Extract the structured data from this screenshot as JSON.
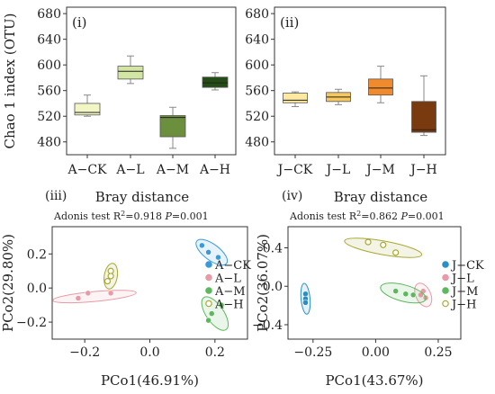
{
  "chart_data": [
    {
      "panel": "(i)",
      "type": "box",
      "ylabel": "Chao 1 index (OTU)",
      "ylim": [
        460,
        690
      ],
      "yticks": [
        480,
        520,
        560,
        600,
        640,
        680
      ],
      "grid": false,
      "categories": [
        "A−CK",
        "A−L",
        "A−M",
        "A−H"
      ],
      "boxes": [
        {
          "min": 520,
          "q1": 522,
          "median": 526,
          "q3": 540,
          "max": 553
        },
        {
          "min": 571,
          "q1": 578,
          "median": 590,
          "q3": 598,
          "max": 614
        },
        {
          "min": 470,
          "q1": 488,
          "median": 518,
          "q3": 521,
          "max": 534
        },
        {
          "min": 561,
          "q1": 565,
          "median": 572,
          "q3": 581,
          "max": 588
        }
      ],
      "colors": [
        "#f2f5c4",
        "#d2e5a3",
        "#6b8f3c",
        "#234d14"
      ]
    },
    {
      "panel": "(ii)",
      "type": "box",
      "ylim": [
        460,
        690
      ],
      "yticks": [
        480,
        520,
        560,
        600,
        640,
        680
      ],
      "grid": false,
      "categories": [
        "J−CK",
        "J−L",
        "J−M",
        "J−H"
      ],
      "boxes": [
        {
          "min": 535,
          "q1": 541,
          "median": 545,
          "q3": 556,
          "max": 558
        },
        {
          "min": 538,
          "q1": 543,
          "median": 550,
          "q3": 557,
          "max": 562
        },
        {
          "min": 541,
          "q1": 553,
          "median": 564,
          "q3": 578,
          "max": 598
        },
        {
          "min": 490,
          "q1": 495,
          "median": 499,
          "q3": 543,
          "max": 583
        }
      ],
      "colors": [
        "#fde9a0",
        "#f6c75c",
        "#f08a2c",
        "#7a3a10"
      ]
    },
    {
      "panel": "(iii)",
      "type": "scatter",
      "title": "Bray distance",
      "subtitle": "Adonis test R²=0.918 P=0.001",
      "r2_text": "Adonis test R",
      "r2_value": "=0.918",
      "p_label": "P",
      "p_value": "=0.001",
      "xlabel": "PCo1(46.91%)",
      "ylabel": "PCo2(29.80%)",
      "xlim": [
        -0.3,
        0.3
      ],
      "ylim": [
        -0.3,
        0.36
      ],
      "xticks": [
        -0.2,
        0.0,
        0.2
      ],
      "xtick_labels": [
        "−0.2",
        "0.0",
        "0.2"
      ],
      "yticks": [
        -0.2,
        0.0,
        0.2
      ],
      "ytick_labels": [
        "−0.2",
        "0.0",
        "0.2"
      ],
      "legend_position": "right",
      "series": [
        {
          "name": "A−CK",
          "color": "#3a9ad9",
          "filled": true,
          "points": [
            [
              0.16,
              0.25
            ],
            [
              0.18,
              0.21
            ],
            [
              0.21,
              0.18
            ]
          ],
          "ellipse": {
            "cx": 0.19,
            "cy": 0.21,
            "rx": 0.08,
            "ry": 0.028,
            "angle_deg": -55
          }
        },
        {
          "name": "A−L",
          "color": "#e89aa6",
          "filled": true,
          "points": [
            [
              -0.22,
              -0.06
            ],
            [
              -0.19,
              -0.03
            ],
            [
              -0.12,
              -0.03
            ]
          ],
          "ellipse": {
            "cx": -0.17,
            "cy": -0.05,
            "rx": 0.13,
            "ry": 0.028,
            "angle_deg": 10
          }
        },
        {
          "name": "A−M",
          "color": "#5cb85c",
          "filled": true,
          "points": [
            [
              0.22,
              -0.1
            ],
            [
              0.19,
              -0.15
            ],
            [
              0.18,
              -0.19
            ]
          ],
          "ellipse": {
            "cx": 0.2,
            "cy": -0.15,
            "rx": 0.1,
            "ry": 0.028,
            "angle_deg": -70
          }
        },
        {
          "name": "A−H",
          "color": "#a8a830",
          "filled": false,
          "points": [
            [
              -0.12,
              0.1
            ],
            [
              -0.12,
              0.07
            ],
            [
              -0.13,
              0.04
            ]
          ],
          "ellipse": {
            "cx": -0.12,
            "cy": 0.07,
            "rx": 0.075,
            "ry": 0.02,
            "angle_deg": -95
          }
        }
      ]
    },
    {
      "panel": "(iv)",
      "type": "scatter",
      "title": "Bray distance",
      "subtitle": "Adonis test R²=0.862 P=0.001",
      "r2_text": "Adonis test R",
      "r2_value": "=0.862",
      "p_label": "P",
      "p_value": "=0.001",
      "xlabel": "PCo1(43.67%)",
      "ylabel": "PCo2(36.07%)",
      "xlim": [
        -0.35,
        0.34
      ],
      "ylim": [
        -0.55,
        0.62
      ],
      "xticks": [
        -0.25,
        0.0,
        0.25
      ],
      "xtick_labels": [
        "−0.25",
        "0.00",
        "0.25"
      ],
      "yticks": [
        -0.4,
        0.0,
        0.4
      ],
      "ytick_labels": [
        "−0.4",
        "0.0",
        "0.4"
      ],
      "legend_position": "right",
      "series": [
        {
          "name": "J−CK",
          "color": "#2a8fc7",
          "filled": true,
          "points": [
            [
              -0.28,
              -0.08
            ],
            [
              -0.28,
              -0.13
            ],
            [
              -0.28,
              -0.17
            ]
          ],
          "ellipse": {
            "cx": -0.28,
            "cy": -0.13,
            "rx": 0.16,
            "ry": 0.018,
            "angle_deg": -88
          }
        },
        {
          "name": "J−L",
          "color": "#e89aa6",
          "filled": true,
          "points": [
            [
              0.19,
              -0.05
            ],
            [
              0.18,
              -0.09
            ],
            [
              0.2,
              -0.12
            ]
          ],
          "ellipse": {
            "cx": 0.19,
            "cy": -0.09,
            "rx": 0.12,
            "ry": 0.03,
            "angle_deg": -80
          }
        },
        {
          "name": "J−M",
          "color": "#5cb85c",
          "filled": true,
          "points": [
            [
              0.08,
              -0.05
            ],
            [
              0.12,
              -0.08
            ],
            [
              0.15,
              -0.09
            ]
          ],
          "ellipse": {
            "cx": 0.11,
            "cy": -0.07,
            "rx": 0.11,
            "ry": 0.05,
            "angle_deg": -35
          }
        },
        {
          "name": "J−H",
          "color": "#a8a830",
          "filled": false,
          "points": [
            [
              -0.03,
              0.46
            ],
            [
              0.03,
              0.43
            ],
            [
              0.08,
              0.35
            ]
          ],
          "ellipse": {
            "cx": 0.03,
            "cy": 0.4,
            "rx": 0.17,
            "ry": 0.05,
            "angle_deg": -25
          }
        }
      ]
    }
  ]
}
